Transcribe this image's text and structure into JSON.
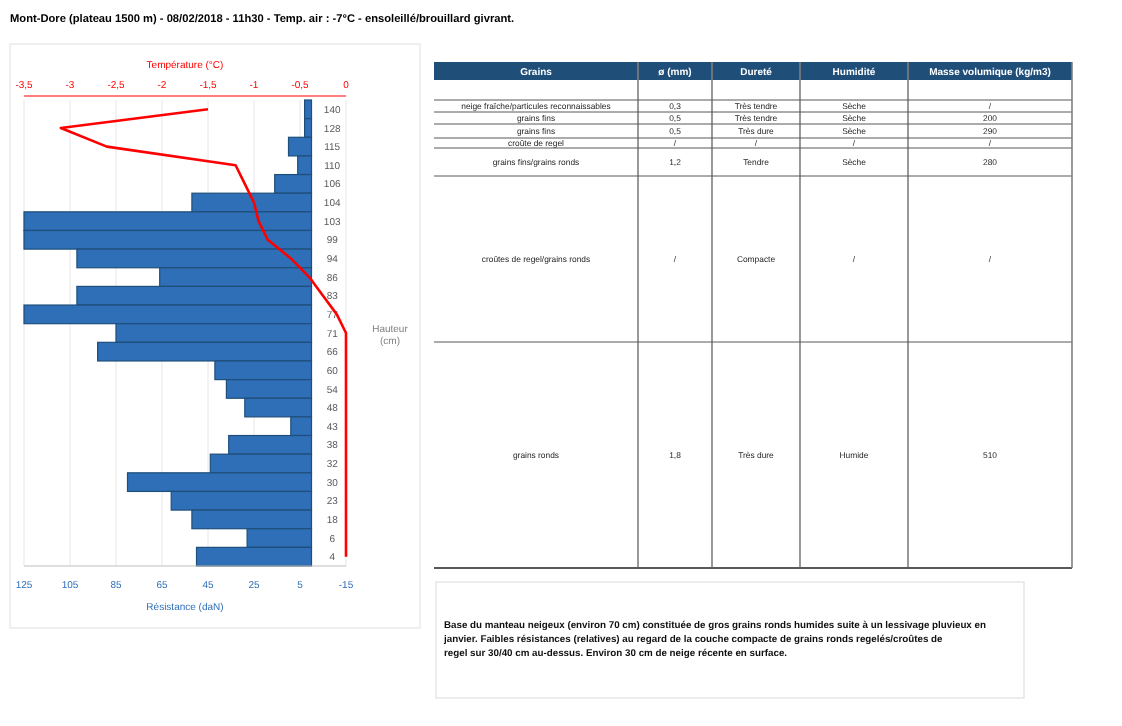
{
  "chart_data": [
    {
      "type": "bar",
      "orientation": "horizontal",
      "title": "Mont-Dore (plateau 1500 m) - 08/02/2018 - 11h30 - Temp. air :  -7°C - ensoleillé/brouillard givrant.",
      "xlabel": "Résistance (daN)",
      "x2label": "Température (°C)",
      "ylabel": "Hauteur (cm)",
      "categories": [
        "140",
        "128",
        "115",
        "110",
        "106",
        "104",
        "103",
        "99",
        "94",
        "86",
        "83",
        "77",
        "71",
        "66",
        "60",
        "54",
        "48",
        "43",
        "38",
        "32",
        "30",
        "23",
        "18",
        "6",
        "4"
      ],
      "series": [
        {
          "type": "bar",
          "color": "#2e6fb7",
          "values": [
            3,
            3,
            10,
            6,
            16,
            52,
            125,
            125,
            102,
            66,
            102,
            125,
            85,
            93,
            42,
            37,
            29,
            9,
            36,
            44,
            80,
            61,
            52,
            28,
            50
          ]
        },
        {
          "type": "line",
          "axis": "x2",
          "color": "#ff0000",
          "values": [
            -1.5,
            -3.1,
            -2.6,
            -1.2,
            -1.1,
            -1.0,
            -0.95,
            -0.85,
            -0.6,
            -0.4,
            -0.25,
            -0.1,
            0,
            0,
            0,
            0,
            0,
            0,
            0,
            0,
            0,
            0,
            0,
            0,
            0
          ]
        }
      ],
      "xlim": [
        125,
        -15
      ],
      "xticks": [
        125,
        105,
        85,
        65,
        45,
        25,
        5,
        -15
      ],
      "x2lim": [
        -3.5,
        0
      ],
      "x2ticks": [
        {
          "value": -3.5,
          "label": "-3,5"
        },
        -3,
        {
          "value": -2.5,
          "label": "-2,5"
        },
        -2,
        {
          "value": -1.5,
          "label": "-1,5"
        },
        -1,
        {
          "value": -0.5,
          "label": "-0,5"
        },
        0
      ],
      "grid": "x"
    },
    {
      "type": "other",
      "categories": [
        "Grains",
        "ø (mm)",
        "Dureté",
        "Humidité",
        "Masse volumique (kg/m3)"
      ],
      "cell_labels": [
        [
          "neige fraîche/particules reconnaissables",
          "0,3",
          "Très tendre",
          "Sèche",
          "/"
        ],
        [
          "grains fins",
          "0,5",
          "Très tendre",
          "Sèche",
          "200"
        ],
        [
          "grains fins",
          "0,5",
          "Très dure",
          "Sèche",
          "290"
        ],
        [
          "croûte de regel",
          "/",
          "/",
          "/",
          "/"
        ],
        [
          "grains fins/grains ronds",
          "1,2",
          "Tendre",
          "Sèche",
          "280"
        ],
        [
          "croûtes de regel/grains ronds",
          "/",
          "Compacte",
          "/",
          "/"
        ],
        [
          "grains ronds",
          "1,8",
          "Très dure",
          "Humide",
          "510"
        ]
      ],
      "annotations": [
        "Base du manteau neigeux (environ 70 cm) constituée de gros grains ronds humides suite à un lessivage pluvieux en janvier. Faibles résistances (relatives) au regard de la couche compacte de grains ronds regelés/croûtes de regel sur 30/40 cm au-dessus. Environ 30 cm de neige récente en surface."
      ]
    }
  ]
}
